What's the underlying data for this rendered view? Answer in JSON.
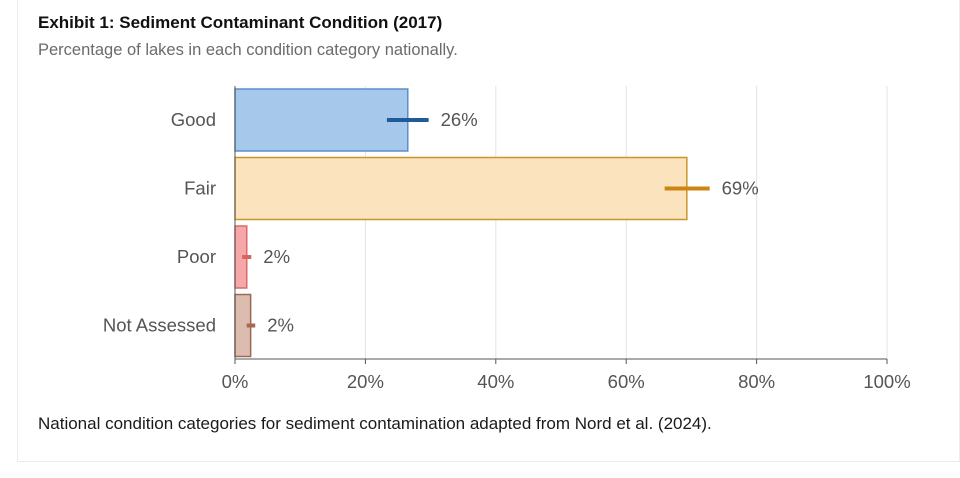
{
  "title": "Exhibit 1: Sediment Contaminant Condition (2017)",
  "subtitle": "Percentage of lakes in each condition category nationally.",
  "caption": "National condition categories for sediment contamination adapted from Nord et al. (2024).",
  "chart_data": {
    "type": "bar",
    "orientation": "horizontal",
    "categories": [
      "Good",
      "Fair",
      "Poor",
      "Not Assessed"
    ],
    "values": [
      26.5,
      69.3,
      1.8,
      2.4
    ],
    "data_labels": [
      "26%",
      "69%",
      "2%",
      "2%"
    ],
    "error_bars": [
      [
        23.3,
        29.7
      ],
      [
        65.9,
        72.8
      ],
      [
        1.1,
        2.5
      ],
      [
        1.8,
        3.1
      ]
    ],
    "xlim": [
      0,
      100
    ],
    "xticks": [
      0,
      20,
      40,
      60,
      80,
      100
    ],
    "xtick_labels": [
      "0%",
      "20%",
      "40%",
      "60%",
      "80%",
      "100%"
    ],
    "grid": "vertical",
    "colors": {
      "fill": [
        "#a6c8eb",
        "#fbe3bd",
        "#f6a8a8",
        "#dbbcae"
      ],
      "stroke": [
        "#5b8fc9",
        "#c9962b",
        "#d86a6a",
        "#9a6a55"
      ],
      "error": [
        "#1f5b99",
        "#cc8412",
        "#d9665c",
        "#a86850"
      ]
    }
  }
}
